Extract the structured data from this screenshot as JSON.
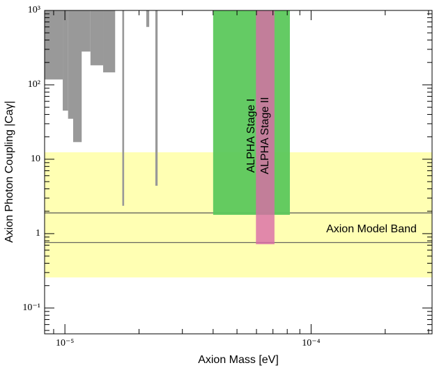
{
  "chart_data": {
    "type": "region",
    "xlabel": "Axion Mass [eV]",
    "ylabel": "Axion Photon Coupling |Caγ|",
    "xscale": "log",
    "yscale": "log",
    "xlim": [
      8.27e-06,
      0.00031
    ],
    "ylim": [
      0.045,
      1000
    ],
    "xticks": [
      {
        "value": 1e-05,
        "label": "10⁻⁵"
      },
      {
        "value": 0.0001,
        "label": "10⁻⁴"
      }
    ],
    "yticks": [
      {
        "value": 0.1,
        "label": "10⁻¹"
      },
      1,
      10,
      {
        "value": 100,
        "label": "10²"
      },
      {
        "value": 1000,
        "label": "10³"
      }
    ],
    "xminorticks": [
      9e-06,
      2e-05,
      3e-05,
      4e-05,
      5e-05,
      6e-05,
      7e-05,
      8e-05,
      9e-05,
      0.0002,
      0.0003
    ],
    "yminorticks": [
      0.05,
      0.06,
      0.07,
      0.08,
      0.09,
      0.2,
      0.3,
      0.4,
      0.5,
      0.6,
      0.7,
      0.8,
      0.9,
      2,
      3,
      4,
      5,
      6,
      7,
      8,
      9,
      20,
      30,
      40,
      50,
      60,
      70,
      80,
      90,
      200,
      300,
      400,
      500,
      600,
      700,
      800,
      900
    ],
    "band": {
      "name": "Axion Model Band",
      "color": "#ffffb3",
      "y": [
        0.258,
        12.4
      ]
    },
    "excluded": {
      "color": "#999999",
      "regions": [
        {
          "x": [
            8.27e-06,
            9.8e-06
          ],
          "y": [
            118,
            1000
          ]
        },
        {
          "x": [
            9.8e-06,
            1.03e-05
          ],
          "y": [
            45,
            1000
          ]
        },
        {
          "x": [
            1.03e-05,
            1.14e-05
          ],
          "y": [
            35,
            1000
          ]
        },
        {
          "x": [
            1.08e-05,
            1.17e-05
          ],
          "y": [
            17,
            1000
          ]
        },
        {
          "x": [
            1.14e-05,
            1.27e-05
          ],
          "y": [
            280,
            1000
          ]
        },
        {
          "x": [
            1.27e-05,
            1.43e-05
          ],
          "y": [
            183,
            1000
          ]
        },
        {
          "x": [
            1.43e-05,
            1.6e-05
          ],
          "y": [
            147,
            1000
          ]
        },
        {
          "x": [
            1.71e-05,
            1.74e-05
          ],
          "y": [
            2.37,
            1000
          ]
        },
        {
          "x": [
            2.14e-05,
            2.2e-05
          ],
          "y": [
            600,
            1000
          ]
        },
        {
          "x": [
            2.33e-05,
            2.38e-05
          ],
          "y": [
            4.4,
            1000
          ]
        }
      ]
    },
    "hlines": {
      "color": "#555555",
      "values": [
        1.9,
        0.76
      ]
    },
    "stages": [
      {
        "name": "ALPHA Stage I",
        "color": "#5cc85c",
        "opacity": 0.95,
        "x": [
          4e-05,
          8.2e-05
        ],
        "y": [
          1.79,
          1000
        ]
      },
      {
        "name": "ALPHA Stage II",
        "color": "#d96aa8",
        "opacity": 0.8,
        "x": [
          5.97e-05,
          7.1e-05
        ],
        "y": [
          0.72,
          1000
        ]
      }
    ]
  }
}
